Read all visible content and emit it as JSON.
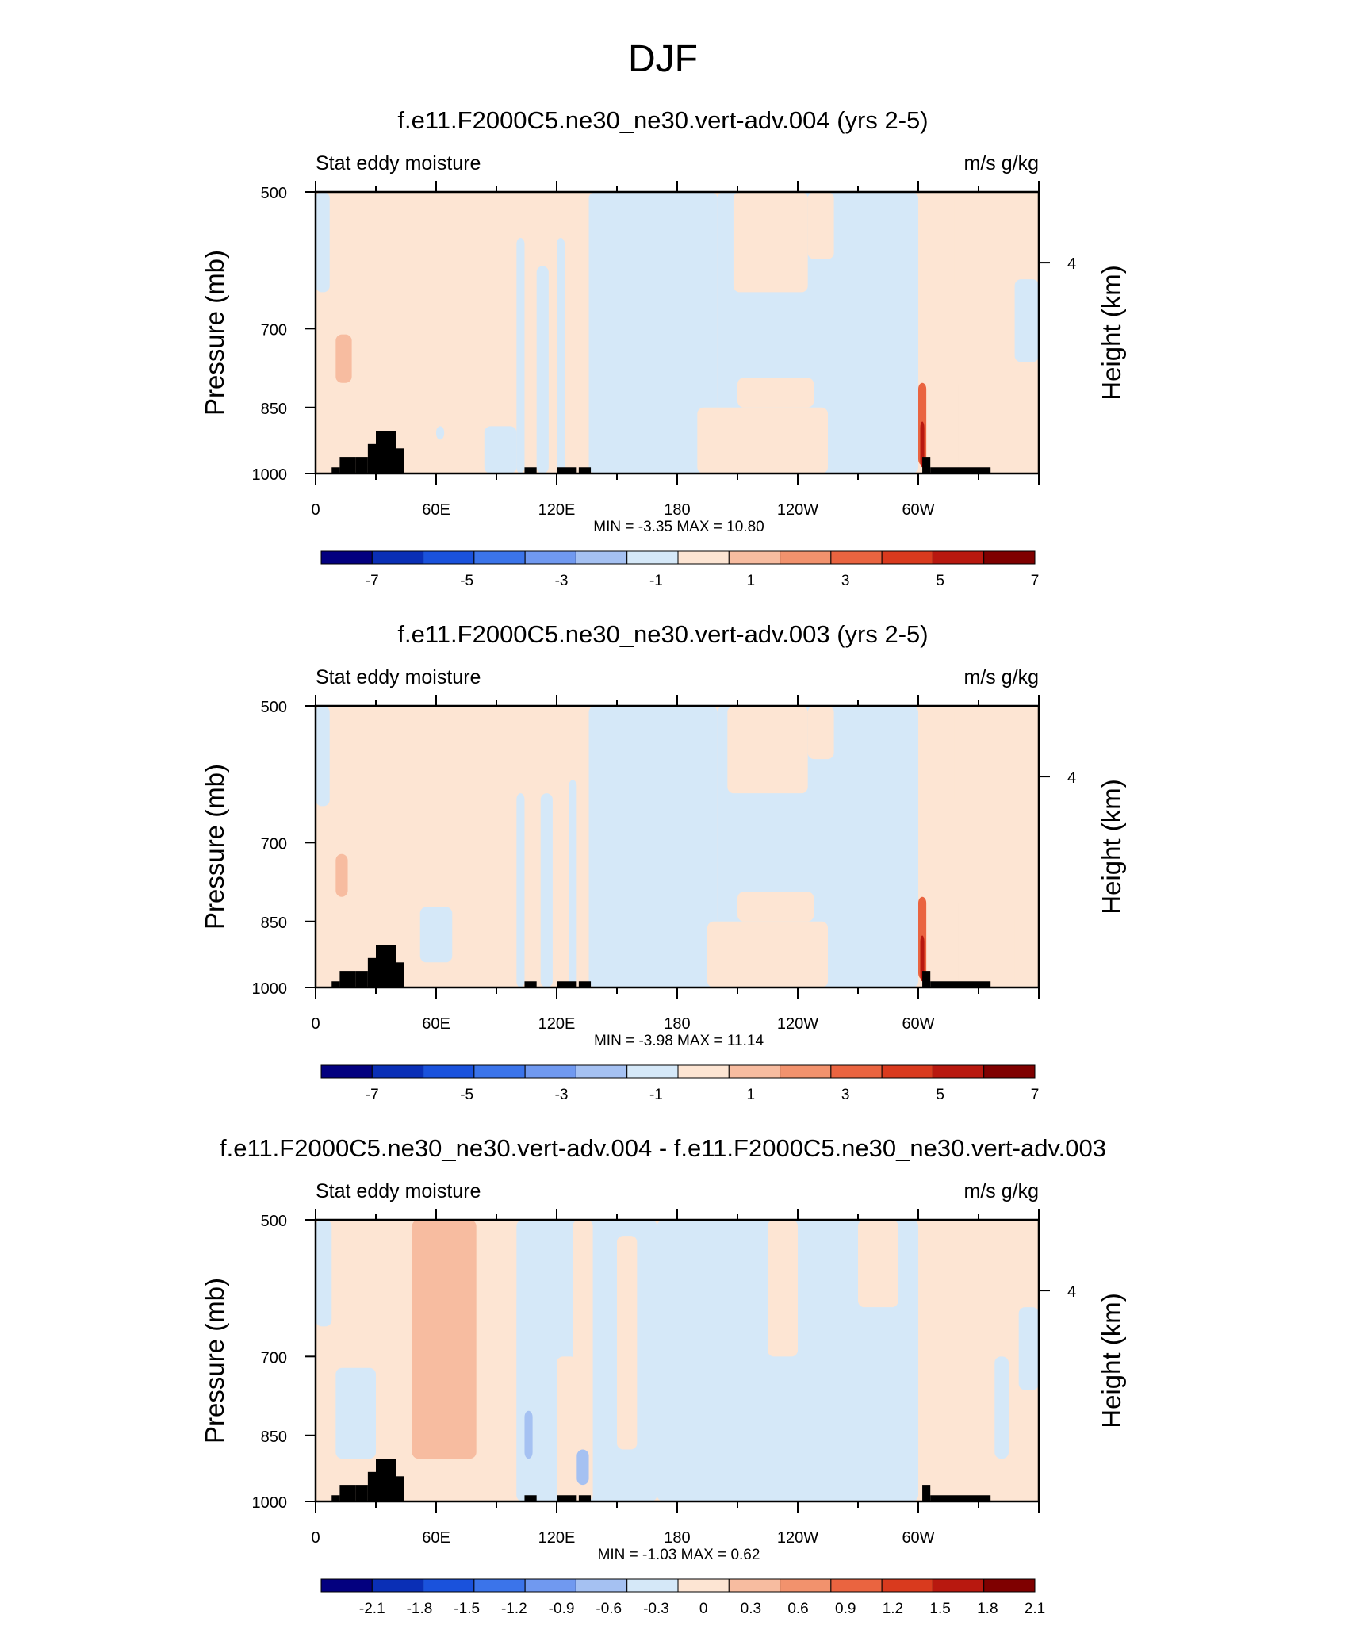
{
  "page_title": "DJF",
  "colors": {
    "land": "#000000",
    "pos_light": "#fde5d3",
    "neg_light": "#d5e8f8",
    "frame": "#000000"
  },
  "chart_data": [
    {
      "type": "heatmap",
      "title": "f.e11.F2000C5.ne30_ne30.vert-adv.004 (yrs 2-5)",
      "left_label": "Stat eddy moisture",
      "right_label": "m/s g/kg",
      "ylabel": "Pressure (mb)",
      "y2label": "Height (km)",
      "y_ticks": [
        "500",
        "700",
        "850",
        "1000"
      ],
      "y2_ticks": [
        "4"
      ],
      "x_ticks": [
        "0",
        "60E",
        "120E",
        "180",
        "120W",
        "60W"
      ],
      "stats": {
        "min_label": "MIN =",
        "min": "-3.35",
        "max_label": "MAX =",
        "max": "10.80"
      },
      "colorbar": [
        "-7",
        "-5",
        "-3",
        "-1",
        "1",
        "3",
        "5",
        "7"
      ],
      "colorbar_colors": [
        "#03007f",
        "#0a2fb6",
        "#1a52dc",
        "#3b74ea",
        "#7099f0",
        "#a5c1f2",
        "#d5e8f8",
        "#fde5d3",
        "#f7bca0",
        "#f2926d",
        "#ea6440",
        "#d93a1e",
        "#b8180f",
        "#7f0000"
      ],
      "xlim": [
        0,
        360
      ],
      "ylim_pressure": [
        1000,
        500
      ]
    },
    {
      "type": "heatmap",
      "title": "f.e11.F2000C5.ne30_ne30.vert-adv.003 (yrs 2-5)",
      "left_label": "Stat eddy moisture",
      "right_label": "m/s g/kg",
      "ylabel": "Pressure (mb)",
      "y2label": "Height (km)",
      "y_ticks": [
        "500",
        "700",
        "850",
        "1000"
      ],
      "y2_ticks": [
        "4"
      ],
      "x_ticks": [
        "0",
        "60E",
        "120E",
        "180",
        "120W",
        "60W"
      ],
      "stats": {
        "min_label": "MIN =",
        "min": "-3.98",
        "max_label": "MAX =",
        "max": "11.14"
      },
      "colorbar": [
        "-7",
        "-5",
        "-3",
        "-1",
        "1",
        "3",
        "5",
        "7"
      ],
      "colorbar_colors": [
        "#03007f",
        "#0a2fb6",
        "#1a52dc",
        "#3b74ea",
        "#7099f0",
        "#a5c1f2",
        "#d5e8f8",
        "#fde5d3",
        "#f7bca0",
        "#f2926d",
        "#ea6440",
        "#d93a1e",
        "#b8180f",
        "#7f0000"
      ],
      "xlim": [
        0,
        360
      ],
      "ylim_pressure": [
        1000,
        500
      ]
    },
    {
      "type": "heatmap",
      "title": "f.e11.F2000C5.ne30_ne30.vert-adv.004 - f.e11.F2000C5.ne30_ne30.vert-adv.003",
      "left_label": "Stat eddy moisture",
      "right_label": "m/s g/kg",
      "ylabel": "Pressure (mb)",
      "y2label": "Height (km)",
      "y_ticks": [
        "500",
        "700",
        "850",
        "1000"
      ],
      "y2_ticks": [
        "4"
      ],
      "x_ticks": [
        "0",
        "60E",
        "120E",
        "180",
        "120W",
        "60W"
      ],
      "stats": {
        "min_label": "MIN =",
        "min": "-1.03",
        "max_label": "MAX =",
        "max": "0.62"
      },
      "colorbar": [
        "-2.1",
        "-1.8",
        "-1.5",
        "-1.2",
        "-0.9",
        "-0.6",
        "-0.3",
        "0",
        "0.3",
        "0.6",
        "0.9",
        "1.2",
        "1.5",
        "1.8",
        "2.1"
      ],
      "colorbar_colors": [
        "#03007f",
        "#0a2fb6",
        "#1a52dc",
        "#3b74ea",
        "#7099f0",
        "#a5c1f2",
        "#d5e8f8",
        "#fde5d3",
        "#f7bca0",
        "#f2926d",
        "#ea6440",
        "#d93a1e",
        "#b8180f",
        "#7f0000"
      ],
      "xlim": [
        0,
        360
      ],
      "ylim_pressure": [
        1000,
        500
      ]
    }
  ]
}
